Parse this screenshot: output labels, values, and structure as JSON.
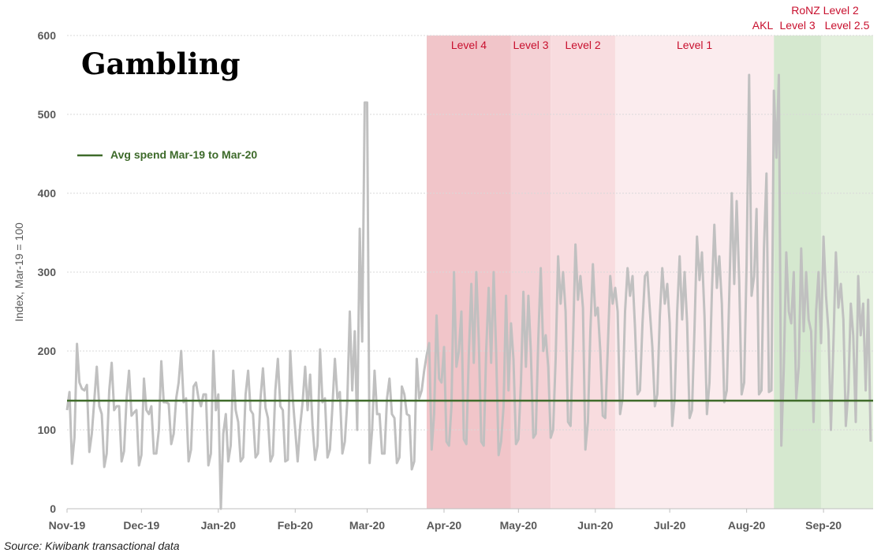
{
  "chart_data": {
    "type": "line",
    "title": "Gambling",
    "xlabel": "",
    "ylabel": "Index, Mar-19 = 100",
    "ylim": [
      0,
      600
    ],
    "yticks": [
      0,
      100,
      200,
      300,
      400,
      500,
      600
    ],
    "grid": true,
    "x_start": "2019-11-01",
    "x_end": "2020-09-21",
    "xticks": [
      {
        "date": "2019-11-01",
        "label": "Nov-19"
      },
      {
        "date": "2019-12-01",
        "label": "Dec-19"
      },
      {
        "date": "2020-01-01",
        "label": "Jan-20"
      },
      {
        "date": "2020-02-01",
        "label": "Feb-20"
      },
      {
        "date": "2020-03-01",
        "label": "Mar-20"
      },
      {
        "date": "2020-04-01",
        "label": "Apr-20"
      },
      {
        "date": "2020-05-01",
        "label": "May-20"
      },
      {
        "date": "2020-06-01",
        "label": "Jun-20"
      },
      {
        "date": "2020-07-01",
        "label": "Jul-20"
      },
      {
        "date": "2020-08-01",
        "label": "Aug-20"
      },
      {
        "date": "2020-09-01",
        "label": "Sep-20"
      }
    ],
    "series": [
      {
        "type": "daily",
        "start": "2019-11-01",
        "color": "#c0c0c0",
        "values": [
          125,
          148,
          57,
          90,
          209,
          160,
          152,
          150,
          157,
          72,
          95,
          138,
          180,
          130,
          120,
          53,
          70,
          150,
          185,
          125,
          130,
          130,
          60,
          73,
          140,
          175,
          118,
          122,
          125,
          55,
          68,
          165,
          125,
          120,
          130,
          70,
          70,
          100,
          187,
          135,
          135,
          133,
          82,
          95,
          140,
          160,
          200,
          135,
          140,
          60,
          75,
          155,
          160,
          140,
          130,
          145,
          145,
          55,
          70,
          200,
          125,
          145,
          0,
          95,
          120,
          60,
          80,
          175,
          125,
          110,
          60,
          65,
          145,
          175,
          125,
          120,
          65,
          70,
          140,
          178,
          128,
          115,
          60,
          68,
          150,
          190,
          130,
          125,
          60,
          62,
          200,
          140,
          100,
          60,
          105,
          135,
          180,
          125,
          170,
          105,
          62,
          80,
          202,
          135,
          140,
          65,
          75,
          130,
          190,
          140,
          148,
          70,
          85,
          135,
          250,
          150,
          225,
          100,
          355,
          212,
          515,
          515,
          58,
          100,
          175,
          120,
          120,
          70,
          70,
          140,
          165,
          120,
          115,
          58,
          65,
          155,
          145,
          120,
          118,
          50,
          60,
          190,
          140,
          150,
          175,
          195,
          210,
          75,
          120,
          245,
          165,
          160,
          205,
          85,
          80,
          130,
          300,
          180,
          200,
          250,
          88,
          82,
          195,
          285,
          185,
          300,
          215,
          85,
          80,
          200,
          280,
          185,
          300,
          200,
          68,
          85,
          130,
          270,
          150,
          235,
          190,
          82,
          88,
          160,
          275,
          180,
          270,
          200,
          90,
          95,
          215,
          305,
          200,
          220,
          180,
          90,
          100,
          190,
          320,
          260,
          300,
          250,
          110,
          105,
          210,
          335,
          265,
          295,
          255,
          75,
          110,
          225,
          310,
          245,
          255,
          200,
          118,
          115,
          200,
          295,
          260,
          280,
          250,
          120,
          140,
          250,
          305,
          270,
          295,
          230,
          145,
          150,
          235,
          295,
          300,
          250,
          205,
          130,
          145,
          245,
          305,
          260,
          285,
          235,
          105,
          140,
          250,
          320,
          240,
          300,
          235,
          115,
          125,
          230,
          345,
          290,
          325,
          245,
          120,
          160,
          275,
          360,
          280,
          320,
          260,
          135,
          150,
          270,
          400,
          285,
          390,
          290,
          145,
          160,
          310,
          550,
          270,
          295,
          380,
          145,
          150,
          330,
          425,
          148,
          150,
          530,
          445,
          550,
          80,
          180,
          325,
          250,
          235,
          300,
          140,
          180,
          330,
          225,
          300,
          240,
          225,
          110,
          250,
          300,
          210,
          345,
          270,
          225,
          100,
          210,
          325,
          255,
          285,
          240,
          105,
          150,
          260,
          220,
          110,
          295,
          220,
          260,
          150,
          265,
          85
        ]
      },
      {
        "name": "Avg spend Mar-19 to Mar-20",
        "type": "constant",
        "value": 137,
        "color": "#3f6b2a"
      }
    ],
    "legend": {
      "label": "Avg spend Mar-19 to Mar-20",
      "placement": "top-left"
    },
    "shaded_regions": [
      {
        "label": "Level 4",
        "start": "2020-03-25",
        "end": "2020-04-28",
        "color": "#f1c5c9"
      },
      {
        "label": "Level 3",
        "start": "2020-04-28",
        "end": "2020-05-14",
        "color": "#f4d1d5"
      },
      {
        "label": "Level 2",
        "start": "2020-05-14",
        "end": "2020-06-09",
        "color": "#f8dcdf"
      },
      {
        "label": "Level 1",
        "start": "2020-06-09",
        "end": "2020-08-12",
        "color": "#fbecee"
      },
      {
        "label": "Level 3",
        "label_prefix": "AKL",
        "start": "2020-08-12",
        "end": "2020-08-31",
        "color": "#d5e8cf"
      },
      {
        "label": "Level 2.5",
        "start": "2020-08-31",
        "end": "2020-09-21",
        "color": "#e3f0dd"
      }
    ],
    "top_annotation": "RoNZ Level 2",
    "label_color": "#c8102e",
    "title_color": "#3d6a2a"
  },
  "source": "Source: Kiwibank transactional data"
}
